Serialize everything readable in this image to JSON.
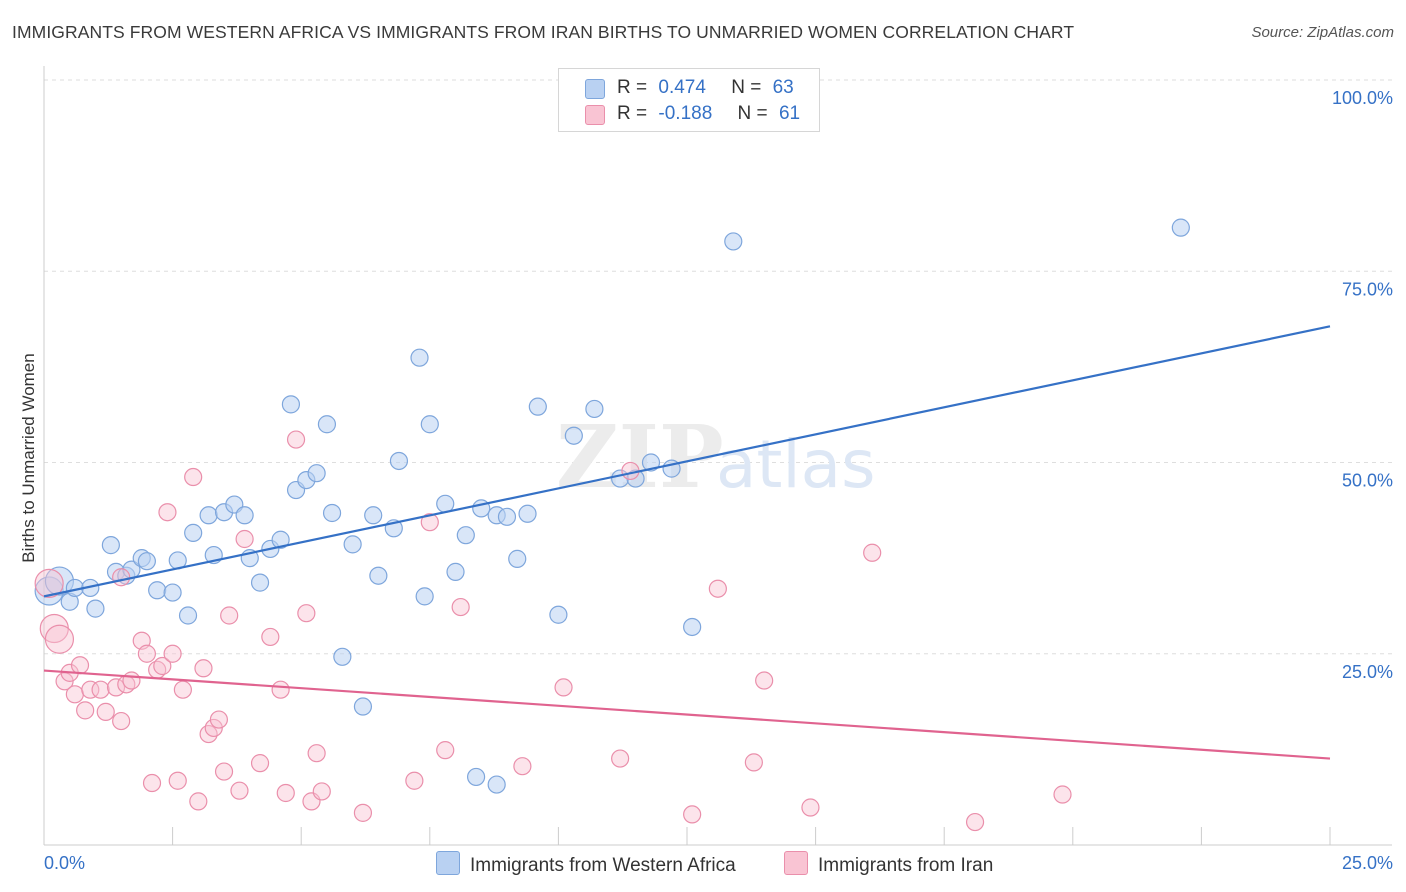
{
  "title": "IMMIGRANTS FROM WESTERN AFRICA VS IMMIGRANTS FROM IRAN BIRTHS TO UNMARRIED WOMEN CORRELATION CHART",
  "source": "Source: ZipAtlas.com",
  "watermark": {
    "zip": "ZIP",
    "atlas": "atlas"
  },
  "legend": {
    "series": [
      {
        "r_label": "R =",
        "r_value": "0.474",
        "n_label": "N =",
        "n_value": "63",
        "fill": "#b9d1f2",
        "stroke": "#7ea6dc"
      },
      {
        "r_label": "R =",
        "r_value": "-0.188",
        "n_label": "N =",
        "n_value": "61",
        "fill": "#f9c4d3",
        "stroke": "#ea8fab"
      }
    ]
  },
  "colors": {
    "blue_point_fill": "rgba(185,209,242,0.55)",
    "blue_point_stroke": "#7ea6dc",
    "blue_line": "#3571c6",
    "pink_point_fill": "rgba(249,196,211,0.45)",
    "pink_point_stroke": "#ea8fab",
    "pink_line": "#e0638f",
    "grid": "#dedede",
    "axis_label": "#3571c6"
  },
  "chart_data": {
    "type": "scatter",
    "title": "IMMIGRANTS FROM WESTERN AFRICA VS IMMIGRANTS FROM IRAN BIRTHS TO UNMARRIED WOMEN CORRELATION CHART",
    "xlabel": "",
    "ylabel": "Births to Unmarried Women",
    "xlim": [
      0,
      25
    ],
    "ylim": [
      0,
      100
    ],
    "x_ticks": [
      "0.0%",
      "25.0%"
    ],
    "y_ticks": [
      "25.0%",
      "50.0%",
      "75.0%",
      "100.0%"
    ],
    "y_tick_values": [
      25,
      50,
      75,
      100
    ],
    "grid": true,
    "legend_position": "top-center",
    "series": [
      {
        "name": "Immigrants from Western Africa",
        "trend": {
          "x": [
            0,
            25
          ],
          "y": [
            32.5,
            67.8
          ]
        },
        "points": [
          [
            0.1,
            33.2
          ],
          [
            0.3,
            34.5
          ],
          [
            0.5,
            31.8
          ],
          [
            0.6,
            33.6
          ],
          [
            0.9,
            33.6
          ],
          [
            1.0,
            30.9
          ],
          [
            1.3,
            39.2
          ],
          [
            1.4,
            35.7
          ],
          [
            1.6,
            35.2
          ],
          [
            1.7,
            36.0
          ],
          [
            1.9,
            37.5
          ],
          [
            2.0,
            37.1
          ],
          [
            2.2,
            33.3
          ],
          [
            2.5,
            33.0
          ],
          [
            2.6,
            37.2
          ],
          [
            2.8,
            30.0
          ],
          [
            2.9,
            40.8
          ],
          [
            3.2,
            43.1
          ],
          [
            3.3,
            37.9
          ],
          [
            3.5,
            43.5
          ],
          [
            3.7,
            44.5
          ],
          [
            3.9,
            43.1
          ],
          [
            4.0,
            37.5
          ],
          [
            4.2,
            34.3
          ],
          [
            4.4,
            38.7
          ],
          [
            4.6,
            39.9
          ],
          [
            4.8,
            57.6
          ],
          [
            4.9,
            46.4
          ],
          [
            5.1,
            47.7
          ],
          [
            5.3,
            48.6
          ],
          [
            5.5,
            55.0
          ],
          [
            5.6,
            43.4
          ],
          [
            5.8,
            24.6
          ],
          [
            6.0,
            39.3
          ],
          [
            6.4,
            43.1
          ],
          [
            6.5,
            35.2
          ],
          [
            6.8,
            41.4
          ],
          [
            6.9,
            50.2
          ],
          [
            7.3,
            63.7
          ],
          [
            7.4,
            32.5
          ],
          [
            7.5,
            55.0
          ],
          [
            7.8,
            44.6
          ],
          [
            8.0,
            35.7
          ],
          [
            8.2,
            40.5
          ],
          [
            8.5,
            44.0
          ],
          [
            8.8,
            43.1
          ],
          [
            9.0,
            42.9
          ],
          [
            9.2,
            37.4
          ],
          [
            9.4,
            43.3
          ],
          [
            9.6,
            57.3
          ],
          [
            10.0,
            30.1
          ],
          [
            10.3,
            53.5
          ],
          [
            10.7,
            57.0
          ],
          [
            11.2,
            47.9
          ],
          [
            11.5,
            47.9
          ],
          [
            11.8,
            50.0
          ],
          [
            12.2,
            49.2
          ],
          [
            12.6,
            28.5
          ],
          [
            13.4,
            78.9
          ],
          [
            22.1,
            80.7
          ],
          [
            6.2,
            18.1
          ],
          [
            8.4,
            8.9
          ],
          [
            8.8,
            7.9
          ]
        ]
      },
      {
        "name": "Immigrants from Iran",
        "trend": {
          "x": [
            0,
            25
          ],
          "y": [
            22.8,
            11.3
          ]
        },
        "points": [
          [
            0.1,
            34.2
          ],
          [
            0.2,
            28.3
          ],
          [
            0.3,
            26.9
          ],
          [
            0.4,
            21.4
          ],
          [
            0.5,
            22.5
          ],
          [
            0.6,
            19.7
          ],
          [
            0.7,
            23.5
          ],
          [
            0.8,
            17.6
          ],
          [
            0.9,
            20.3
          ],
          [
            1.1,
            20.3
          ],
          [
            1.2,
            17.4
          ],
          [
            1.4,
            20.6
          ],
          [
            1.5,
            16.2
          ],
          [
            1.6,
            21.0
          ],
          [
            1.7,
            21.5
          ],
          [
            1.5,
            35.0
          ],
          [
            1.9,
            26.7
          ],
          [
            2.0,
            25.0
          ],
          [
            2.1,
            8.1
          ],
          [
            2.2,
            22.9
          ],
          [
            2.3,
            23.4
          ],
          [
            2.4,
            43.5
          ],
          [
            2.5,
            25.0
          ],
          [
            2.6,
            8.4
          ],
          [
            2.7,
            20.3
          ],
          [
            2.9,
            48.1
          ],
          [
            3.0,
            5.7
          ],
          [
            3.1,
            23.1
          ],
          [
            3.2,
            14.5
          ],
          [
            3.3,
            15.3
          ],
          [
            3.4,
            16.4
          ],
          [
            3.5,
            9.6
          ],
          [
            3.6,
            30.0
          ],
          [
            3.8,
            7.1
          ],
          [
            3.9,
            40.0
          ],
          [
            4.2,
            10.7
          ],
          [
            4.4,
            27.2
          ],
          [
            4.6,
            20.3
          ],
          [
            4.7,
            6.8
          ],
          [
            4.9,
            53.0
          ],
          [
            5.1,
            30.3
          ],
          [
            5.2,
            5.7
          ],
          [
            5.3,
            12.0
          ],
          [
            5.4,
            7.0
          ],
          [
            6.2,
            4.2
          ],
          [
            7.2,
            8.4
          ],
          [
            7.5,
            42.2
          ],
          [
            7.8,
            12.4
          ],
          [
            8.1,
            31.1
          ],
          [
            9.3,
            10.3
          ],
          [
            10.1,
            20.6
          ],
          [
            11.2,
            11.3
          ],
          [
            11.4,
            48.9
          ],
          [
            12.6,
            4.0
          ],
          [
            13.1,
            33.5
          ],
          [
            13.8,
            10.8
          ],
          [
            14.9,
            4.9
          ],
          [
            16.1,
            38.2
          ],
          [
            18.1,
            3.0
          ],
          [
            19.8,
            6.6
          ],
          [
            14.0,
            21.5
          ]
        ]
      }
    ]
  },
  "bottom_legend": {
    "items": [
      {
        "label": "Immigrants from Western Africa",
        "fill": "#b9d1f2",
        "stroke": "#7ea6dc"
      },
      {
        "label": "Immigrants from Iran",
        "fill": "#f9c4d3",
        "stroke": "#ea8fab"
      }
    ]
  }
}
